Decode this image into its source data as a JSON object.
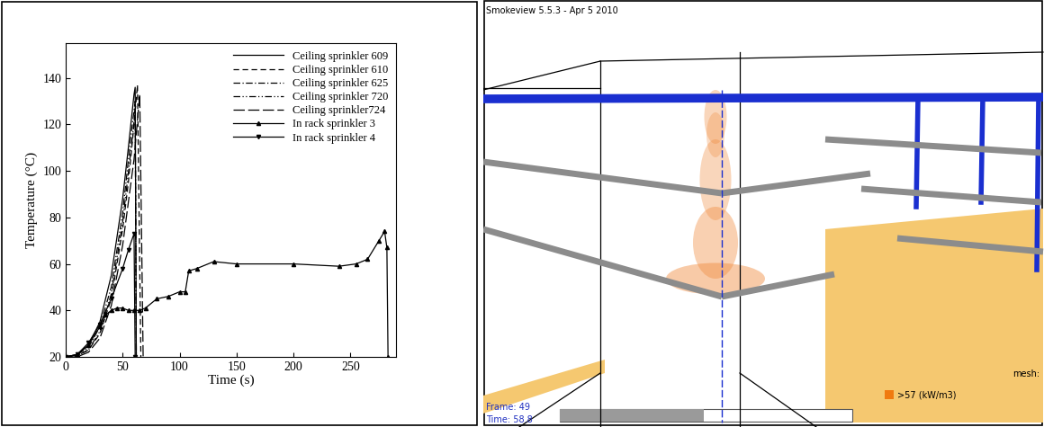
{
  "chart_data": {
    "type": "line",
    "xlabel": "Time (s)",
    "ylabel": "Temperature (°C)",
    "xlim": [
      0,
      290
    ],
    "ylim": [
      20,
      155
    ],
    "xticks": [
      0,
      50,
      100,
      150,
      200,
      250
    ],
    "yticks": [
      20,
      40,
      60,
      80,
      100,
      120,
      140
    ],
    "legend": "upper right",
    "series": [
      {
        "name": "Ceiling sprinkler 609",
        "color": "#000000",
        "line_style": "solid",
        "x": [
          0,
          10,
          20,
          30,
          40,
          50,
          55,
          60,
          61,
          62
        ],
        "values": [
          20,
          21,
          25,
          35,
          55,
          88,
          110,
          133,
          136,
          20
        ]
      },
      {
        "name": "Ceiling sprinkler 610",
        "color": "#000000",
        "line_style": "dashed",
        "x": [
          0,
          10,
          20,
          30,
          40,
          50,
          55,
          60,
          63,
          66
        ],
        "values": [
          20,
          20.5,
          23,
          30,
          45,
          75,
          95,
          120,
          137,
          20
        ]
      },
      {
        "name": "Ceiling sprinkler 625",
        "color": "#000000",
        "line_style": "dashdot",
        "x": [
          0,
          10,
          20,
          30,
          40,
          50,
          58,
          61,
          62
        ],
        "values": [
          20,
          21,
          24,
          33,
          50,
          82,
          118,
          130,
          20
        ]
      },
      {
        "name": "Ceiling sprinkler 720",
        "color": "#000000",
        "line_style": "dashdotdot",
        "x": [
          0,
          10,
          20,
          30,
          40,
          50,
          58,
          61,
          62
        ],
        "values": [
          20,
          20.5,
          23,
          31,
          47,
          78,
          112,
          126,
          20
        ]
      },
      {
        "name": "Ceiling sprinkler724",
        "color": "#000000",
        "line_style": "longdash",
        "x": [
          0,
          10,
          20,
          30,
          40,
          50,
          60,
          65,
          68
        ],
        "values": [
          20,
          20,
          22,
          28,
          42,
          68,
          105,
          133,
          20
        ]
      },
      {
        "name": "In rack sprinkler 3",
        "color": "#000000",
        "line_style": "solid",
        "marker": "triangle_up",
        "x": [
          0,
          10,
          20,
          30,
          35,
          40,
          45,
          50,
          55,
          60,
          65,
          70,
          80,
          90,
          100,
          105,
          108,
          115,
          130,
          150,
          200,
          240,
          255,
          265,
          275,
          280,
          282,
          283
        ],
        "values": [
          20,
          21,
          25,
          33,
          38,
          40,
          41,
          41,
          40,
          40,
          40,
          41,
          45,
          46,
          48,
          48,
          57,
          58,
          61,
          60,
          60,
          59,
          60,
          62,
          70,
          74,
          67,
          20
        ]
      },
      {
        "name": "In rack sprinkler 4",
        "color": "#000000",
        "line_style": "solid",
        "marker": "triangle_down",
        "x": [
          0,
          10,
          20,
          30,
          40,
          50,
          55,
          60,
          61
        ],
        "values": [
          20,
          21,
          26,
          34,
          45,
          58,
          66,
          73,
          20
        ]
      }
    ]
  },
  "screenshot": {
    "title": "Smokeview 5.5.3 - Apr 5 2010",
    "frame_label": "Frame: 49",
    "time_label": "Time: 58.8",
    "legend_label": ">57 (kW/m3)",
    "mesh_label": "mesh:"
  }
}
